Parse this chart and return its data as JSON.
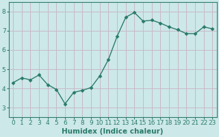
{
  "x": [
    0,
    1,
    2,
    3,
    4,
    5,
    6,
    7,
    8,
    9,
    10,
    11,
    12,
    13,
    14,
    15,
    16,
    17,
    18,
    19,
    20,
    21,
    22,
    23
  ],
  "y": [
    4.3,
    4.55,
    4.45,
    4.7,
    4.2,
    3.95,
    3.2,
    3.8,
    3.9,
    4.05,
    4.65,
    5.5,
    6.7,
    7.7,
    7.95,
    7.5,
    7.55,
    7.4,
    7.2,
    7.05,
    6.85,
    6.85,
    7.2,
    7.1
  ],
  "line_color": "#2a7a6a",
  "marker": "D",
  "marker_size": 2.5,
  "bg_color": "#cce8e8",
  "grid_color": "#c8b8c8",
  "xlabel": "Humidex (Indice chaleur)",
  "ylim": [
    2.5,
    8.5
  ],
  "xlim": [
    -0.5,
    23.5
  ],
  "yticks": [
    3,
    4,
    5,
    6,
    7,
    8
  ],
  "xticks": [
    0,
    1,
    2,
    3,
    4,
    5,
    6,
    7,
    8,
    9,
    10,
    11,
    12,
    13,
    14,
    15,
    16,
    17,
    18,
    19,
    20,
    21,
    22,
    23
  ],
  "xlabel_fontsize": 7.5,
  "tick_fontsize": 6.5,
  "line_width": 1.0
}
